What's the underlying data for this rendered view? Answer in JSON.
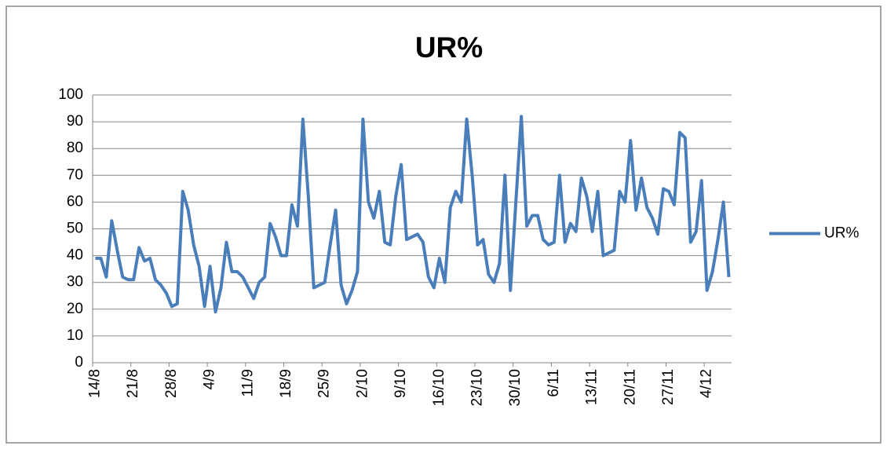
{
  "chart_data": {
    "type": "line",
    "title": "UR%",
    "categories": [
      "14/8",
      null,
      null,
      null,
      null,
      null,
      null,
      "21/8",
      null,
      null,
      null,
      null,
      null,
      null,
      "28/8",
      null,
      null,
      null,
      null,
      null,
      null,
      "4/9",
      null,
      null,
      null,
      null,
      null,
      null,
      "11/9",
      null,
      null,
      null,
      null,
      null,
      null,
      "18/9",
      null,
      null,
      null,
      null,
      null,
      null,
      "25/9",
      null,
      null,
      null,
      null,
      null,
      null,
      "2/10",
      null,
      null,
      null,
      null,
      null,
      null,
      "9/10",
      null,
      null,
      null,
      null,
      null,
      null,
      "16/10",
      null,
      null,
      null,
      null,
      null,
      null,
      "23/10",
      null,
      null,
      null,
      null,
      null,
      null,
      "30/10",
      null,
      null,
      null,
      null,
      null,
      null,
      "6/11",
      null,
      null,
      null,
      null,
      null,
      null,
      "13/11",
      null,
      null,
      null,
      null,
      null,
      null,
      "20/11",
      null,
      null,
      null,
      null,
      null,
      null,
      "27/11",
      null,
      null,
      null,
      null,
      null,
      null,
      "4/12",
      null,
      null,
      null,
      null
    ],
    "series": [
      {
        "name": "UR%",
        "color": "#4a7ebb",
        "values": [
          39,
          39,
          32,
          53,
          42,
          32,
          31,
          31,
          43,
          38,
          39,
          31,
          29,
          26,
          21,
          22,
          64,
          57,
          44,
          36,
          21,
          36,
          19,
          28,
          45,
          34,
          34,
          32,
          28,
          24,
          30,
          32,
          52,
          47,
          40,
          40,
          59,
          51,
          91,
          62,
          28,
          29,
          30,
          44,
          57,
          29,
          22,
          27,
          34,
          91,
          60,
          54,
          64,
          45,
          44,
          62,
          74,
          46,
          47,
          48,
          45,
          32,
          28,
          39,
          30,
          58,
          64,
          60,
          91,
          70,
          44,
          46,
          33,
          30,
          37,
          70,
          27,
          60,
          92,
          51,
          55,
          55,
          46,
          44,
          45,
          70,
          45,
          52,
          49,
          69,
          62,
          49,
          64,
          40,
          41,
          42,
          64,
          60,
          83,
          57,
          69,
          58,
          54,
          48,
          65,
          64,
          59,
          86,
          84,
          45,
          49,
          68,
          27,
          34,
          46,
          60,
          32
        ]
      }
    ],
    "ylim": [
      0,
      100
    ],
    "yticks": [
      0,
      10,
      20,
      30,
      40,
      50,
      60,
      70,
      80,
      90,
      100
    ],
    "grid": true,
    "legend": "right"
  }
}
